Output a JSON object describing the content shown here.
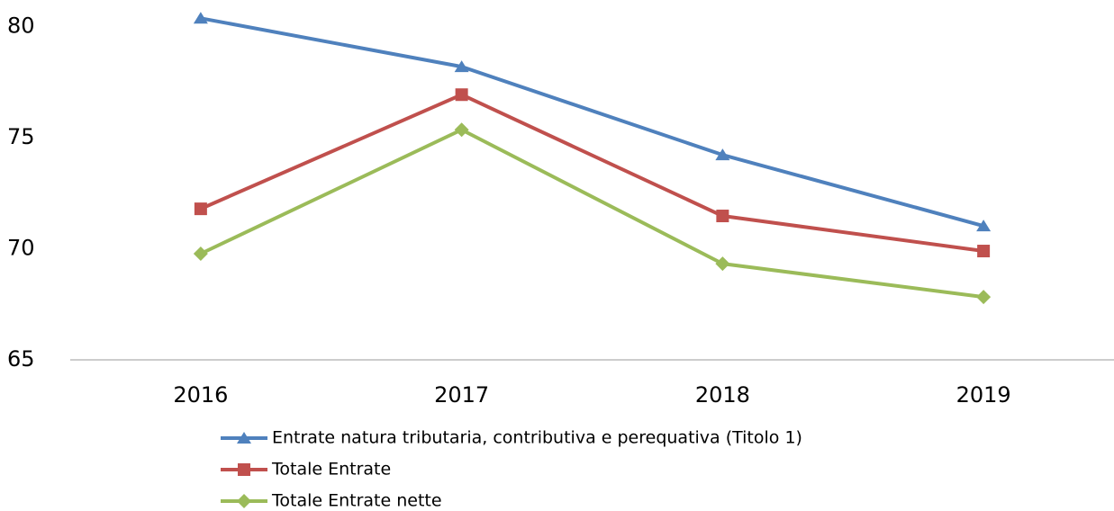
{
  "chart_data": {
    "type": "line",
    "categories": [
      "2016",
      "2017",
      "2018",
      "2019"
    ],
    "series": [
      {
        "name": "Entrate natura tributaria, contributiva e perequativa (Titolo 1)",
        "color": "#4f81bd",
        "marker": "triangle",
        "values": [
          80.38,
          78.2,
          74.23,
          71.03
        ]
      },
      {
        "name": "Totale Entrate",
        "color": "#c0504d",
        "marker": "square",
        "values": [
          71.8,
          76.94,
          71.48,
          69.9
        ]
      },
      {
        "name": "Totale Entrate nette",
        "color": "#9bbb59",
        "marker": "diamond",
        "values": [
          69.78,
          75.36,
          69.33,
          67.83
        ]
      }
    ],
    "ylim": [
      65,
      81
    ],
    "yticks": [
      65,
      70,
      75,
      80
    ],
    "grid": false,
    "legend": "bottom"
  }
}
